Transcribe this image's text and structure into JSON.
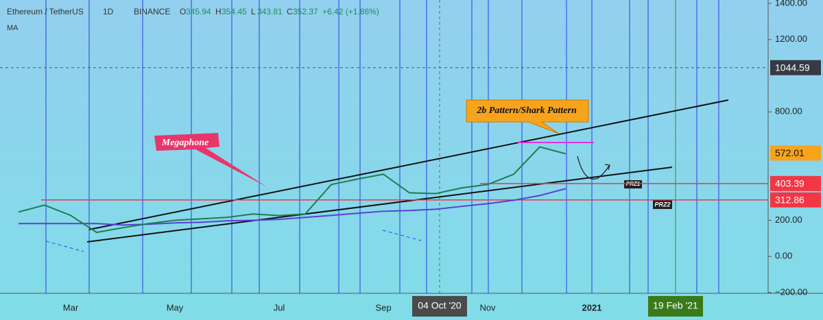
{
  "chart_data": {
    "type": "line",
    "title": "Ethereum / TetherUS",
    "interval": "1D",
    "exchange": "BINANCE",
    "ohlc": [
      {
        "key": "O",
        "text": "345.94"
      },
      {
        "key": "H",
        "text": "354.45"
      },
      {
        "key": "L",
        "text": "343.81"
      },
      {
        "key": "C",
        "text": "352.37"
      }
    ],
    "change": "+6.42 (+1.86%)",
    "categories": [
      null,
      null,
      "Mar",
      null,
      null,
      null,
      "May",
      null,
      null,
      null,
      "Jul",
      null,
      null,
      null,
      "Sep",
      null,
      null,
      null,
      "Nov",
      null,
      null,
      null,
      "2021"
    ],
    "values": [
      246,
      284,
      227,
      133,
      159,
      182,
      200,
      208,
      216,
      235,
      226,
      235,
      398,
      428,
      455,
      352,
      348,
      379,
      398,
      455,
      606,
      568,
      null
    ],
    "color": "#1e7d4e",
    "ma": {
      "name": "MA",
      "color": "#5b3fd4",
      "values": [
        182,
        182,
        182,
        182,
        174,
        178,
        186,
        189,
        197,
        200,
        205,
        216,
        227,
        239,
        250,
        254,
        261,
        277,
        292,
        311,
        337,
        375,
        null
      ]
    },
    "ylim": [
      -200,
      1400
    ],
    "yticks": [
      {
        "value": -200,
        "label": "−200.00"
      },
      {
        "value": 0,
        "label": "0.00"
      },
      {
        "value": 200,
        "label": "200.00"
      },
      {
        "value": 800,
        "label": "800.00"
      },
      {
        "value": 1200,
        "label": "1200.00"
      },
      {
        "value": 1400,
        "label": "1400.00"
      }
    ],
    "levels": [
      {
        "value": 1044.59,
        "color": "#363a45",
        "style": "dashed"
      },
      {
        "value": 572.01,
        "color": "#f7a31c",
        "style": "none"
      },
      {
        "value": 403.39,
        "color": "#f23645",
        "style": "solid"
      },
      {
        "value": 312.86,
        "color": "#f23645",
        "style": "solid"
      }
    ],
    "crosshair_labels": [
      "04 Oct '20",
      "19 Feb '21"
    ],
    "annotations": [
      "Megaphone",
      "2b Pattern/Shark Pattern",
      "PRZ1",
      "PRZ2"
    ]
  }
}
